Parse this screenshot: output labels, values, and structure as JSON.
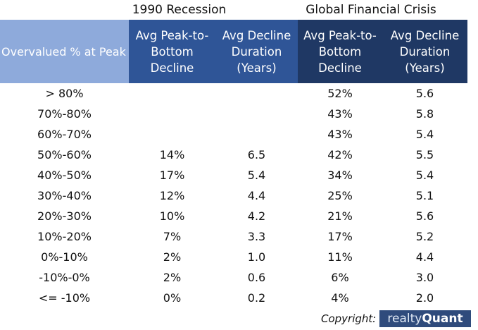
{
  "groups": {
    "recession_1990": "1990 Recession",
    "gfc": "Global Financial Crisis"
  },
  "headers": {
    "overvalued": "Overvalued % at Peak",
    "r1990_decline": "Avg Peak-to-\nBottom\nDecline",
    "r1990_duration": "Avg Decline\nDuration\n(Years)",
    "gfc_decline": "Avg Peak-to-\nBottom\nDecline",
    "gfc_duration": "Avg Decline\nDuration\n(Years)"
  },
  "rows": [
    {
      "band": "> 80%",
      "r1990_decline": "",
      "r1990_duration": "",
      "gfc_decline": "52%",
      "gfc_duration": "5.6"
    },
    {
      "band": "70%-80%",
      "r1990_decline": "",
      "r1990_duration": "",
      "gfc_decline": "43%",
      "gfc_duration": "5.8"
    },
    {
      "band": "60%-70%",
      "r1990_decline": "",
      "r1990_duration": "",
      "gfc_decline": "43%",
      "gfc_duration": "5.4"
    },
    {
      "band": "50%-60%",
      "r1990_decline": "14%",
      "r1990_duration": "6.5",
      "gfc_decline": "42%",
      "gfc_duration": "5.5"
    },
    {
      "band": "40%-50%",
      "r1990_decline": "17%",
      "r1990_duration": "5.4",
      "gfc_decline": "34%",
      "gfc_duration": "5.4"
    },
    {
      "band": "30%-40%",
      "r1990_decline": "12%",
      "r1990_duration": "4.4",
      "gfc_decline": "25%",
      "gfc_duration": "5.1"
    },
    {
      "band": "20%-30%",
      "r1990_decline": "10%",
      "r1990_duration": "4.2",
      "gfc_decline": "21%",
      "gfc_duration": "5.6"
    },
    {
      "band": "10%-20%",
      "r1990_decline": "7%",
      "r1990_duration": "3.3",
      "gfc_decline": "17%",
      "gfc_duration": "5.2"
    },
    {
      "band": "0%-10%",
      "r1990_decline": "2%",
      "r1990_duration": "1.0",
      "gfc_decline": "11%",
      "gfc_duration": "4.4"
    },
    {
      "band": "-10%-0%",
      "r1990_decline": "2%",
      "r1990_duration": "0.6",
      "gfc_decline": "6%",
      "gfc_duration": "3.0"
    },
    {
      "band": "<= -10%",
      "r1990_decline": "0%",
      "r1990_duration": "0.2",
      "gfc_decline": "4%",
      "gfc_duration": "2.0"
    }
  ],
  "footer": {
    "copyright": "Copyright:",
    "logo_light": "realty",
    "logo_bold": "Quant"
  },
  "colors": {
    "overvalued_header_bg": "#8eaadb",
    "recession_1990_header_bg": "#2f5597",
    "gfc_header_bg": "#1f3864",
    "logo_bg": "#2f4b7c"
  }
}
